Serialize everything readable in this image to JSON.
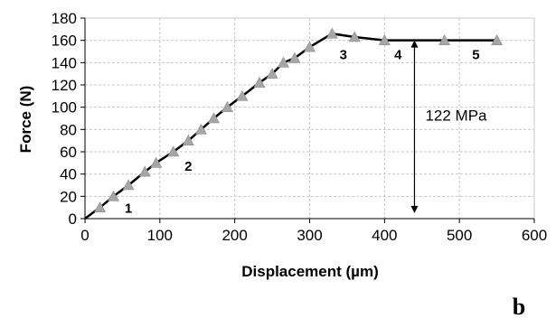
{
  "chart_data": {
    "type": "line",
    "xlabel": "Displacement (µm)",
    "ylabel": "Force (N)",
    "xlim": [
      0,
      600
    ],
    "ylim": [
      0,
      180
    ],
    "xticks": [
      0,
      100,
      200,
      300,
      400,
      500,
      600
    ],
    "yticks": [
      0,
      20,
      40,
      60,
      80,
      100,
      120,
      140,
      160,
      180
    ],
    "grid": true,
    "line_color": "#000000",
    "marker": "triangle",
    "marker_color": "#a6a6a6",
    "series": [
      {
        "x": [
          0,
          20,
          38,
          58,
          80,
          95,
          118,
          138,
          155,
          172,
          190,
          210,
          233,
          250,
          265,
          280,
          300,
          330,
          360,
          400,
          480,
          550
        ],
        "y": [
          0,
          10,
          20,
          30,
          42,
          50,
          60,
          70,
          80,
          90,
          100,
          110,
          122,
          130,
          140,
          144,
          154,
          166,
          163,
          160,
          160,
          160
        ]
      }
    ],
    "point_labels": [
      {
        "text": "1",
        "x": 58,
        "y": 10
      },
      {
        "text": "2",
        "x": 138,
        "y": 48
      },
      {
        "text": "3",
        "x": 345,
        "y": 148
      },
      {
        "text": "4",
        "x": 418,
        "y": 148
      },
      {
        "text": "5",
        "x": 522,
        "y": 148
      }
    ],
    "annotation": {
      "text": "122 MPa",
      "arrow_x": 440,
      "arrow_from": 160,
      "arrow_to": 5
    }
  },
  "panel_label": "b"
}
